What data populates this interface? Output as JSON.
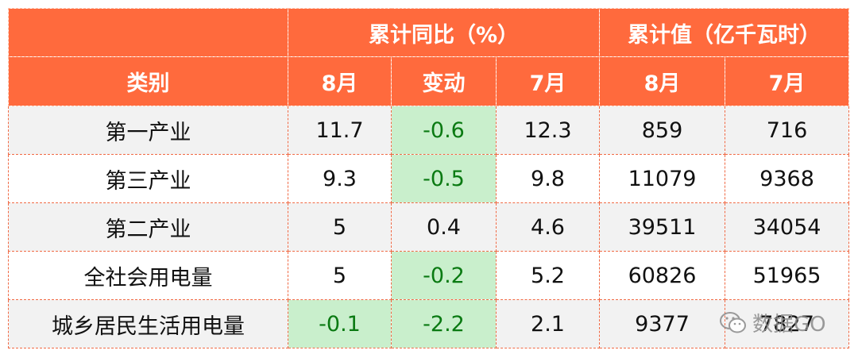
{
  "table": {
    "group_headers": {
      "yoy": "累计同比（%）",
      "cumulative": "累计值（亿千瓦时）"
    },
    "columns": {
      "category": "类别",
      "yoy_aug": "8月",
      "yoy_change": "变动",
      "yoy_jul": "7月",
      "cum_aug": "8月",
      "cum_jul": "7月"
    },
    "rows": [
      {
        "category": "第一产业",
        "yoy_aug": "11.7",
        "yoy_change": "-0.6",
        "yoy_jul": "12.3",
        "cum_aug": "859",
        "cum_jul": "716"
      },
      {
        "category": "第三产业",
        "yoy_aug": "9.3",
        "yoy_change": "-0.5",
        "yoy_jul": "9.8",
        "cum_aug": "11079",
        "cum_jul": "9368"
      },
      {
        "category": "第二产业",
        "yoy_aug": "5",
        "yoy_change": "0.4",
        "yoy_jul": "4.6",
        "cum_aug": "39511",
        "cum_jul": "34054"
      },
      {
        "category": "全社会用电量",
        "yoy_aug": "5",
        "yoy_change": "-0.2",
        "yoy_jul": "5.2",
        "cum_aug": "60826",
        "cum_jul": "51965"
      },
      {
        "category": "城乡居民生活用电量",
        "yoy_aug": "-0.1",
        "yoy_change": "-2.2",
        "yoy_jul": "2.1",
        "cum_aug": "9377",
        "cum_jul": "7827"
      }
    ]
  },
  "watermark": {
    "text": "数据GO",
    "icon": "wechat-icon"
  },
  "colors": {
    "header_bg": "#ff6a3d",
    "negative_bg": "#c9efcc",
    "negative_text": "#0a7a12"
  }
}
